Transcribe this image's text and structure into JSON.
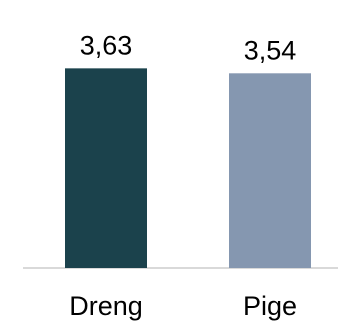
{
  "chart_data": {
    "type": "bar",
    "categories": [
      "Dreng",
      "Pige"
    ],
    "values": [
      3.63,
      3.54
    ],
    "value_labels": [
      "3,63",
      "3,54"
    ],
    "colors": [
      "#1b424c",
      "#8597b0"
    ],
    "axis_color": "#d9d9d9",
    "title": "",
    "xlabel": "",
    "ylabel": "",
    "ylim": [
      0,
      4
    ],
    "grid": false,
    "legend": "none"
  }
}
